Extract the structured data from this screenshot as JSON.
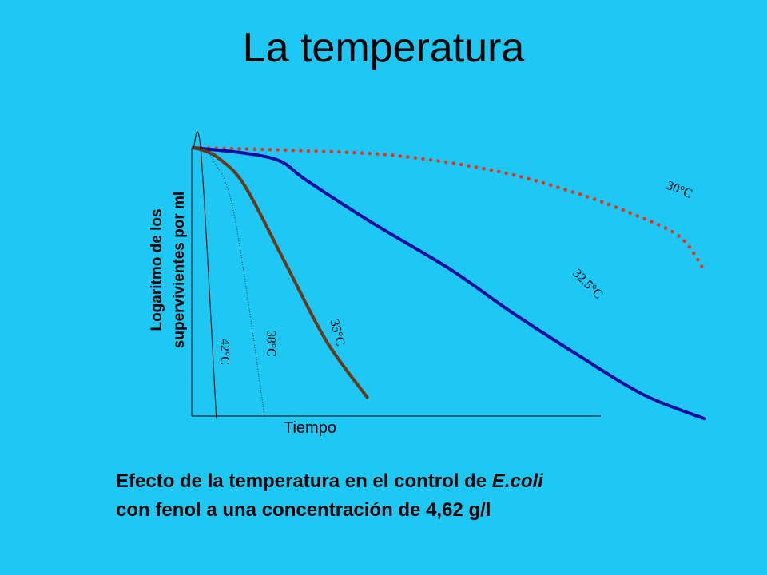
{
  "slide": {
    "title": "La temperatura",
    "caption": {
      "line1_pre": "Efecto de la temperatura en el control de ",
      "line1_em": "E.coli",
      "line2": "con fenol a una concentración de 4,62 g/l"
    }
  },
  "chart_data": {
    "type": "line",
    "xlabel": "Tiempo",
    "ylabel_lines": [
      "Logaritmo de los",
      "supervivientes por ml"
    ],
    "grid": false,
    "legend": "inline labels",
    "xlim": [
      0,
      100
    ],
    "ylim": [
      0,
      100
    ],
    "series": [
      {
        "name": "30°C",
        "color": "#e8331f",
        "style": "dotted",
        "x": [
          0,
          20,
          40,
          60,
          75,
          85,
          95,
          100
        ],
        "y": [
          100,
          99,
          97,
          91,
          83,
          76,
          67,
          54
        ]
      },
      {
        "name": "32,5°C",
        "color": "#0a0aa0",
        "style": "solid",
        "x": [
          0,
          10,
          17,
          22,
          35,
          50,
          62,
          75,
          88,
          100
        ],
        "y": [
          100,
          98,
          95,
          88,
          72,
          55,
          39,
          23,
          8,
          -1
        ]
      },
      {
        "name": "35°C",
        "color": "#6b3818",
        "style": "solid",
        "x": [
          0,
          2,
          5,
          10,
          18,
          26,
          34
        ],
        "y": [
          100,
          99,
          96,
          86,
          57,
          28,
          7
        ]
      },
      {
        "name": "38°C",
        "color": "#202020",
        "style": "thin-dotted",
        "x": [
          0,
          2,
          4,
          8,
          14
        ],
        "y": [
          100,
          99,
          95,
          75,
          -1
        ]
      },
      {
        "name": "42°C",
        "color": "#202020",
        "style": "thin",
        "x": [
          0,
          1.5,
          4.5
        ],
        "y": [
          100,
          98,
          -1
        ]
      }
    ],
    "labels": [
      {
        "series": "30°C",
        "text": "30°C",
        "at_x": 95,
        "at_y": 84,
        "angle": 22
      },
      {
        "series": "32,5°C",
        "text": "32.5°C",
        "at_x": 77,
        "at_y": 49,
        "angle": 45
      },
      {
        "series": "35°C",
        "text": "35°C",
        "at_x": 28,
        "at_y": 31,
        "angle": 75
      },
      {
        "series": "38°C",
        "text": "38°C",
        "at_x": 15,
        "at_y": 27,
        "angle": 90
      },
      {
        "series": "42°C",
        "text": "42°C",
        "at_x": 6,
        "at_y": 24,
        "angle": 90
      }
    ]
  }
}
